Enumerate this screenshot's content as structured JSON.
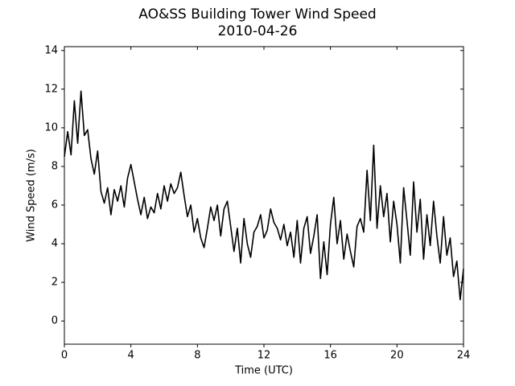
{
  "chart_data": {
    "type": "line",
    "title": "AO&SS Building Tower Wind Speed",
    "subtitle": "2010-04-26",
    "xlabel": "Time (UTC)",
    "ylabel": "Wind Speed (m/s)",
    "x": [
      0,
      0.2,
      0.4,
      0.6,
      0.8,
      1,
      1.2,
      1.4,
      1.6,
      1.8,
      2,
      2.2,
      2.4,
      2.6,
      2.8,
      3,
      3.2,
      3.4,
      3.6,
      3.8,
      4,
      4.2,
      4.4,
      4.6,
      4.8,
      5,
      5.2,
      5.4,
      5.6,
      5.8,
      6,
      6.2,
      6.4,
      6.6,
      6.8,
      7,
      7.2,
      7.4,
      7.6,
      7.8,
      8,
      8.2,
      8.4,
      8.6,
      8.8,
      9,
      9.2,
      9.4,
      9.6,
      9.8,
      10,
      10.2,
      10.4,
      10.6,
      10.8,
      11,
      11.2,
      11.4,
      11.6,
      11.8,
      12,
      12.2,
      12.4,
      12.6,
      12.8,
      13,
      13.2,
      13.4,
      13.6,
      13.8,
      14,
      14.2,
      14.4,
      14.6,
      14.8,
      15,
      15.2,
      15.4,
      15.6,
      15.8,
      16,
      16.2,
      16.4,
      16.6,
      16.8,
      17,
      17.2,
      17.4,
      17.6,
      17.8,
      18,
      18.2,
      18.4,
      18.6,
      18.8,
      19,
      19.2,
      19.4,
      19.6,
      19.8,
      20,
      20.2,
      20.4,
      20.6,
      20.8,
      21,
      21.2,
      21.4,
      21.6,
      21.8,
      22,
      22.2,
      22.4,
      22.6,
      22.8,
      23,
      23.2,
      23.4,
      23.6,
      23.8,
      24
    ],
    "values": [
      8.5,
      9.8,
      8.6,
      11.4,
      9.2,
      11.9,
      9.6,
      9.9,
      8.4,
      7.6,
      8.8,
      6.7,
      6.1,
      6.9,
      5.5,
      6.8,
      6.2,
      7.0,
      5.9,
      7.4,
      8.1,
      7.2,
      6.3,
      5.5,
      6.4,
      5.3,
      5.9,
      5.6,
      6.6,
      5.8,
      7.0,
      6.2,
      7.1,
      6.6,
      6.9,
      7.7,
      6.5,
      5.4,
      6.0,
      4.6,
      5.3,
      4.3,
      3.8,
      4.8,
      5.9,
      5.2,
      6.0,
      4.4,
      5.8,
      6.2,
      4.9,
      3.6,
      4.8,
      3.0,
      5.3,
      4.0,
      3.3,
      4.6,
      4.9,
      5.5,
      4.3,
      4.7,
      5.8,
      5.1,
      4.8,
      4.2,
      5.0,
      3.9,
      4.6,
      3.3,
      5.2,
      3.0,
      4.8,
      5.4,
      3.5,
      4.4,
      5.5,
      2.2,
      4.1,
      2.4,
      5.0,
      6.4,
      4.0,
      5.2,
      3.2,
      4.5,
      3.6,
      2.8,
      4.9,
      5.3,
      4.6,
      7.8,
      5.2,
      9.1,
      4.8,
      7.0,
      5.4,
      6.6,
      4.1,
      6.2,
      5.0,
      3.0,
      6.9,
      5.2,
      3.4,
      7.2,
      4.6,
      6.3,
      3.2,
      5.5,
      3.9,
      6.2,
      4.4,
      3.0,
      5.4,
      3.4,
      4.3,
      2.3,
      3.1,
      1.1,
      2.7
    ],
    "color": "#000000",
    "xlim": [
      0,
      24
    ],
    "xticks": [
      0,
      4,
      8,
      12,
      16,
      20,
      24
    ],
    "ylim": [
      -1.2,
      14.2
    ],
    "yticks": [
      0,
      2,
      4,
      6,
      8,
      10,
      12,
      14
    ]
  }
}
